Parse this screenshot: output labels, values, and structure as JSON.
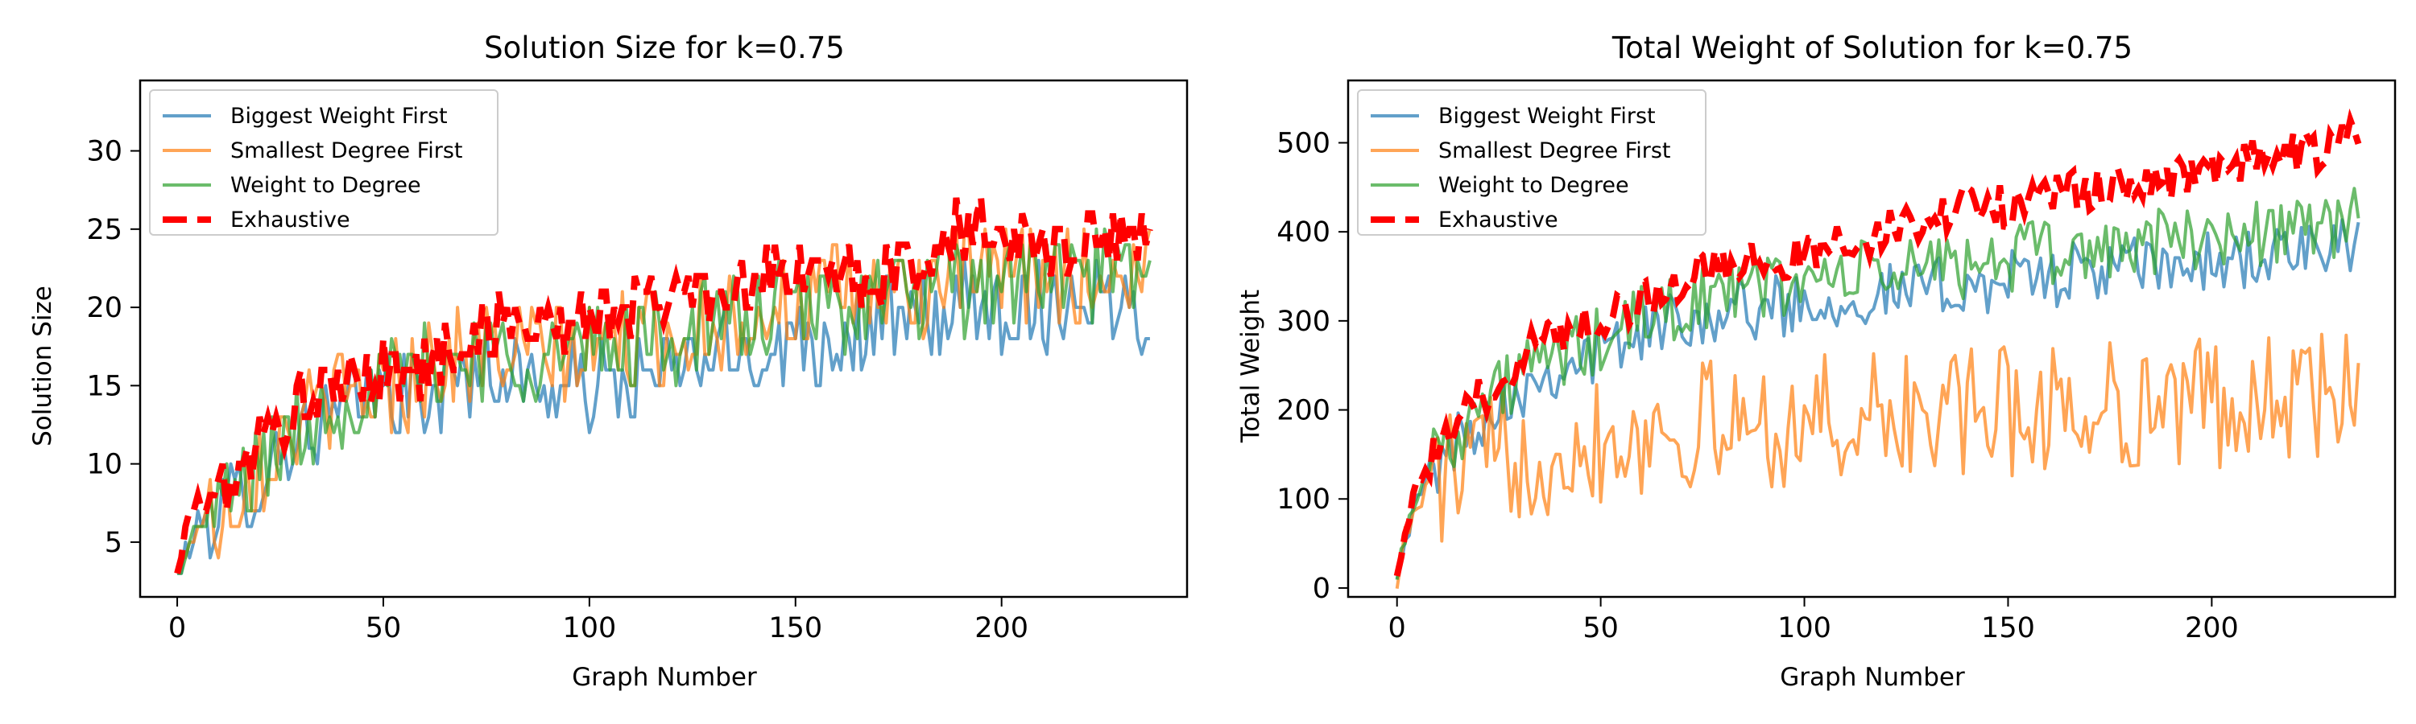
{
  "chart_data": [
    {
      "type": "line",
      "title": "Solution Size for k=0.75",
      "xlabel": "Graph Number",
      "ylabel": "Solution Size",
      "xlim": [
        -9,
        245
      ],
      "ylim": [
        1.5,
        34.5
      ],
      "xticks": [
        0,
        50,
        100,
        150,
        200
      ],
      "yticks": [
        5,
        10,
        15,
        20,
        25,
        30
      ],
      "legend": "upper-left",
      "grid": false,
      "n_points": 237,
      "series": [
        {
          "name": "Biggest Weight First",
          "color": "#1f77b4",
          "anchors": [
            [
              0,
              3
            ],
            [
              5,
              6
            ],
            [
              10,
              7
            ],
            [
              20,
              9
            ],
            [
              30,
              12
            ],
            [
              40,
              13
            ],
            [
              50,
              15
            ],
            [
              60,
              14
            ],
            [
              70,
              16
            ],
            [
              80,
              16
            ],
            [
              90,
              15
            ],
            [
              100,
              15
            ],
            [
              110,
              15
            ],
            [
              120,
              16
            ],
            [
              130,
              17
            ],
            [
              140,
              17
            ],
            [
              150,
              18
            ],
            [
              160,
              18
            ],
            [
              170,
              19
            ],
            [
              180,
              19
            ],
            [
              190,
              20
            ],
            [
              200,
              20
            ],
            [
              210,
              20
            ],
            [
              220,
              21
            ],
            [
              236,
              20
            ]
          ],
          "noise": 2.8
        },
        {
          "name": "Smallest Degree First",
          "color": "#ff7f0e",
          "anchors": [
            [
              0,
              3
            ],
            [
              5,
              6
            ],
            [
              10,
              7
            ],
            [
              20,
              10
            ],
            [
              30,
              13
            ],
            [
              40,
              14
            ],
            [
              50,
              15
            ],
            [
              60,
              16
            ],
            [
              70,
              17
            ],
            [
              80,
              17
            ],
            [
              90,
              17
            ],
            [
              100,
              17
            ],
            [
              110,
              18
            ],
            [
              120,
              18
            ],
            [
              130,
              19
            ],
            [
              140,
              20
            ],
            [
              150,
              20
            ],
            [
              160,
              21
            ],
            [
              170,
              21
            ],
            [
              180,
              21
            ],
            [
              190,
              22
            ],
            [
              200,
              22
            ],
            [
              210,
              22
            ],
            [
              220,
              22
            ],
            [
              236,
              22
            ]
          ],
          "noise": 3.2
        },
        {
          "name": "Weight to Degree",
          "color": "#2ca02c",
          "anchors": [
            [
              0,
              3
            ],
            [
              5,
              6
            ],
            [
              10,
              7
            ],
            [
              20,
              10
            ],
            [
              30,
              12
            ],
            [
              40,
              14
            ],
            [
              50,
              15
            ],
            [
              60,
              16
            ],
            [
              70,
              17
            ],
            [
              80,
              17
            ],
            [
              90,
              17
            ],
            [
              100,
              17
            ],
            [
              110,
              18
            ],
            [
              120,
              18
            ],
            [
              130,
              19
            ],
            [
              140,
              19
            ],
            [
              150,
              20
            ],
            [
              160,
              20
            ],
            [
              170,
              21
            ],
            [
              180,
              21
            ],
            [
              190,
              21
            ],
            [
              200,
              22
            ],
            [
              210,
              22
            ],
            [
              220,
              22
            ],
            [
              236,
              22
            ]
          ],
          "noise": 3.0
        },
        {
          "name": "Exhaustive",
          "color": "#ff0000",
          "dashed": true,
          "anchors": [
            [
              0,
              3
            ],
            [
              3,
              7
            ],
            [
              10,
              8
            ],
            [
              20,
              11
            ],
            [
              30,
              14
            ],
            [
              40,
              15
            ],
            [
              50,
              16
            ],
            [
              60,
              16
            ],
            [
              70,
              18
            ],
            [
              80,
              19
            ],
            [
              90,
              19
            ],
            [
              100,
              19
            ],
            [
              110,
              20
            ],
            [
              120,
              21
            ],
            [
              130,
              21
            ],
            [
              140,
              22
            ],
            [
              150,
              22
            ],
            [
              160,
              22
            ],
            [
              170,
              22
            ],
            [
              180,
              23
            ],
            [
              190,
              25
            ],
            [
              200,
              25
            ],
            [
              210,
              24
            ],
            [
              220,
              24
            ],
            [
              236,
              25
            ]
          ],
          "noise": 2.0
        }
      ]
    },
    {
      "type": "line",
      "title": "Total Weight of Solution for k=0.75",
      "xlabel": "Graph Number",
      "ylabel": "Total Weight",
      "xlim": [
        -12,
        245
      ],
      "ylim": [
        -10,
        570
      ],
      "xticks": [
        0,
        50,
        100,
        150,
        200
      ],
      "yticks": [
        0,
        100,
        200,
        300,
        400,
        500
      ],
      "legend": "upper-left",
      "grid": false,
      "n_points": 237,
      "series": [
        {
          "name": "Biggest Weight First",
          "color": "#1f77b4",
          "anchors": [
            [
              0,
              20
            ],
            [
              5,
              100
            ],
            [
              10,
              140
            ],
            [
              20,
              190
            ],
            [
              30,
              225
            ],
            [
              40,
              250
            ],
            [
              50,
              265
            ],
            [
              60,
              285
            ],
            [
              70,
              305
            ],
            [
              80,
              310
            ],
            [
              90,
              315
            ],
            [
              100,
              320
            ],
            [
              110,
              325
            ],
            [
              120,
              330
            ],
            [
              130,
              335
            ],
            [
              140,
              340
            ],
            [
              150,
              345
            ],
            [
              160,
              350
            ],
            [
              170,
              355
            ],
            [
              180,
              360
            ],
            [
              190,
              360
            ],
            [
              200,
              365
            ],
            [
              210,
              370
            ],
            [
              220,
              375
            ],
            [
              236,
              380
            ]
          ],
          "noise": 35
        },
        {
          "name": "Smallest Degree First",
          "color": "#ff7f0e",
          "anchors": [
            [
              0,
              20
            ],
            [
              5,
              95
            ],
            [
              10,
              120
            ],
            [
              20,
              140
            ],
            [
              30,
              150
            ],
            [
              40,
              160
            ],
            [
              50,
              170
            ],
            [
              60,
              175
            ],
            [
              70,
              180
            ],
            [
              80,
              180
            ],
            [
              90,
              185
            ],
            [
              100,
              185
            ],
            [
              110,
              190
            ],
            [
              120,
              190
            ],
            [
              130,
              195
            ],
            [
              140,
              195
            ],
            [
              150,
              200
            ],
            [
              160,
              200
            ],
            [
              170,
              205
            ],
            [
              180,
              205
            ],
            [
              190,
              205
            ],
            [
              200,
              210
            ],
            [
              210,
              210
            ],
            [
              220,
              215
            ],
            [
              236,
              215
            ]
          ],
          "noise": 75
        },
        {
          "name": "Weight to Degree",
          "color": "#2ca02c",
          "anchors": [
            [
              0,
              20
            ],
            [
              5,
              110
            ],
            [
              10,
              160
            ],
            [
              20,
              200
            ],
            [
              30,
              240
            ],
            [
              40,
              260
            ],
            [
              50,
              275
            ],
            [
              60,
              300
            ],
            [
              70,
              320
            ],
            [
              80,
              330
            ],
            [
              90,
              340
            ],
            [
              100,
              345
            ],
            [
              110,
              350
            ],
            [
              120,
              355
            ],
            [
              130,
              360
            ],
            [
              140,
              365
            ],
            [
              150,
              370
            ],
            [
              160,
              375
            ],
            [
              170,
              380
            ],
            [
              180,
              385
            ],
            [
              190,
              390
            ],
            [
              200,
              395
            ],
            [
              210,
              400
            ],
            [
              220,
              405
            ],
            [
              236,
              410
            ]
          ],
          "noise": 40
        },
        {
          "name": "Exhaustive",
          "color": "#ff0000",
          "dashed": true,
          "anchors": [
            [
              0,
              20
            ],
            [
              5,
              120
            ],
            [
              10,
              150
            ],
            [
              20,
              210
            ],
            [
              30,
              260
            ],
            [
              40,
              290
            ],
            [
              50,
              305
            ],
            [
              60,
              320
            ],
            [
              70,
              350
            ],
            [
              80,
              360
            ],
            [
              90,
              365
            ],
            [
              100,
              375
            ],
            [
              110,
              390
            ],
            [
              120,
              400
            ],
            [
              130,
              410
            ],
            [
              140,
              430
            ],
            [
              150,
              430
            ],
            [
              160,
              440
            ],
            [
              170,
              445
            ],
            [
              180,
              455
            ],
            [
              190,
              460
            ],
            [
              200,
              470
            ],
            [
              210,
              480
            ],
            [
              220,
              485
            ],
            [
              236,
              505
            ]
          ],
          "noise": 25
        }
      ]
    }
  ]
}
